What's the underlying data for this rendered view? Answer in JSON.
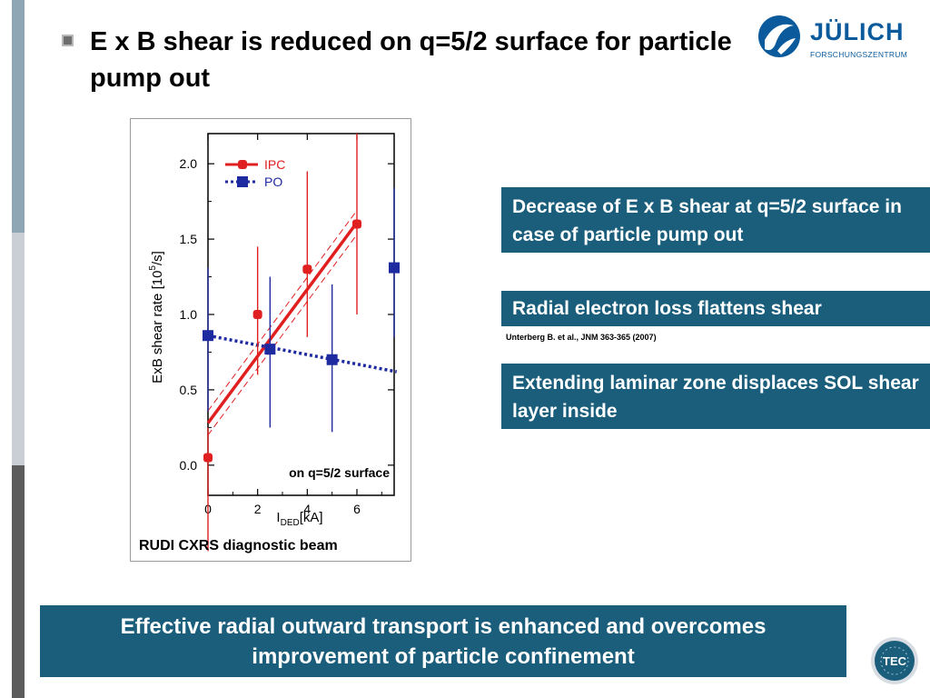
{
  "slide": {
    "title": "E x B shear is reduced on q=5/2 surface for particle pump out",
    "boxes": [
      "Decrease of E x B shear at q=5/2 surface in case of particle pump out",
      "Radial electron loss flattens shear",
      "Extending laminar zone displaces SOL shear layer inside"
    ],
    "reference": "Unterberg B. et al., JNM 363-365 (2007)",
    "conclusion": "Effective radial outward transport is enhanced and overcomes improvement of particle confinement"
  },
  "logo": {
    "name": "JÜLICH",
    "subtitle": "FORSCHUNGSZENTRUM"
  },
  "tec_badge": "TEC",
  "colors": {
    "accent": "#1a5e7c",
    "ipc": "#e02020",
    "po": "#1e2aa0",
    "stripe_top": "#8fa6b5",
    "stripe_mid": "#c9cfd4",
    "stripe_bottom": "#5c5c5c"
  },
  "chart_data": {
    "type": "scatter",
    "ylabel_main": "ExB shear rate [10",
    "ylabel_sup": "5",
    "ylabel_end": "/s]",
    "xlabel_main": "I",
    "xlabel_sub": "DED",
    "xlabel_end": "[kA]",
    "xlim": [
      0,
      7.5
    ],
    "ylim": [
      -0.2,
      2.2
    ],
    "x_ticks": [
      0,
      2,
      4,
      6
    ],
    "y_ticks": [
      0.0,
      0.5,
      1.0,
      1.5,
      2.0
    ],
    "x_tick_labels": [
      "0",
      "2",
      "4",
      "6"
    ],
    "y_tick_labels": [
      "0.0",
      "0.5",
      "1.0",
      "1.5",
      "2.0"
    ],
    "annotation": "on q=5/2 surface",
    "caption": "RUDI CXRS diagnostic beam",
    "legend": [
      {
        "name": "IPC",
        "style": "solid"
      },
      {
        "name": "PO",
        "style": "dotted"
      }
    ],
    "series": [
      {
        "name": "IPC",
        "points": [
          {
            "x": 0,
            "y": 0.05,
            "err_lo": 0.62,
            "err_hi": 0.2
          },
          {
            "x": 2,
            "y": 1.0,
            "err_lo": 0.4,
            "err_hi": 0.45
          },
          {
            "x": 4,
            "y": 1.3,
            "err_lo": 0.45,
            "err_hi": 0.65
          },
          {
            "x": 6,
            "y": 1.6,
            "err_lo": 0.6,
            "err_hi": 0.6
          }
        ],
        "fit": {
          "x": [
            0,
            6
          ],
          "y": [
            0.28,
            1.61
          ],
          "band": 0.08
        }
      },
      {
        "name": "PO",
        "points": [
          {
            "x": 0,
            "y": 0.86,
            "err_lo": 0.5,
            "err_hi": 0.45
          },
          {
            "x": 2.5,
            "y": 0.77,
            "err_lo": 0.52,
            "err_hi": 0.48
          },
          {
            "x": 5,
            "y": 0.7,
            "err_lo": 0.48,
            "err_hi": 0.5
          },
          {
            "x": 7.5,
            "y": 1.31,
            "err_lo": 0.46,
            "err_hi": 0.53
          }
        ],
        "fit": {
          "x": [
            0,
            7.6
          ],
          "y": [
            0.86,
            0.62
          ]
        }
      }
    ]
  }
}
